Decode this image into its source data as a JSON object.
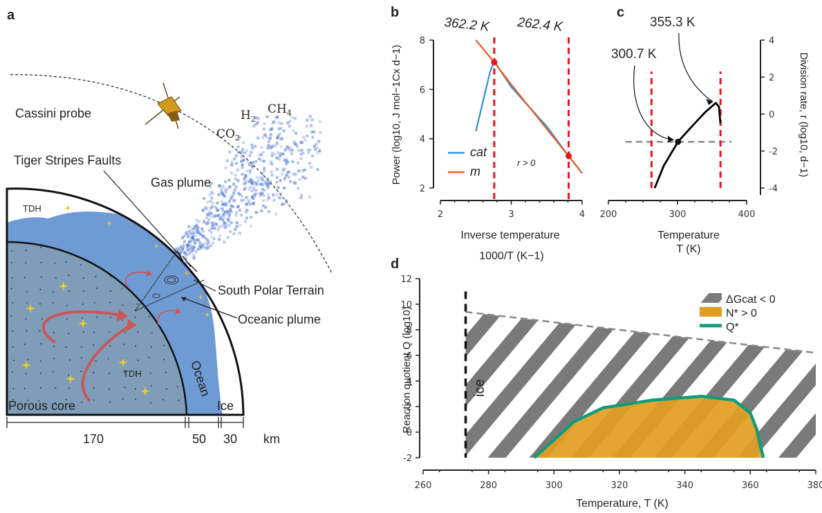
{
  "panels": {
    "a": {
      "letter": "a",
      "cassini": "Cassini probe",
      "h2_main": "H",
      "h2_sub": "2",
      "ch4_main": "CH",
      "ch4_sub": "4",
      "co2_main": "CO",
      "co2_sub": "2",
      "tiger": "Tiger Stripes Faults",
      "gas_plume": "Gas plume",
      "tdh": "TDH",
      "south_polar": "South Polar Terrain",
      "oceanic_plume": "Oceanic plume",
      "porous_core": "Porous core",
      "ocean": "Ocean",
      "ice": "Ice",
      "scale": [
        "170",
        "50",
        "30"
      ],
      "unit": "km"
    },
    "b": {
      "letter": "b",
      "temp_left": "362.2 K",
      "temp_right": "262.4 K",
      "r_label": "r > 0",
      "ylabel": "Power (log10, J mol−1Cx d−1)",
      "xlabel_line1": "Inverse temperature",
      "xlabel_line2": "1000/T (K−1)"
    },
    "c": {
      "letter": "c",
      "ann1": "355.3 K",
      "ann2": "300.7 K",
      "xlabel_line1": "Temperature",
      "xlabel_line2": "T (K)",
      "ylabel": "Division rate, r (log10, d−1)"
    },
    "d": {
      "letter": "d",
      "ice": "ice",
      "ylabel": "Reaction quotient Q (log10)",
      "xlabel": "Temperature, T (K)",
      "legend": [
        "ΔGcat < 0",
        "N* > 0",
        "Q*"
      ]
    }
  },
  "chart_data": [
    {
      "panel": "b",
      "type": "line",
      "xlabel": "Inverse temperature 1000/T (K−1)",
      "ylabel": "Power (log10, J mol−1Cx d−1)",
      "xlim": [
        2,
        4
      ],
      "ylim": [
        2,
        8
      ],
      "xticks": [
        "2",
        "3",
        "4"
      ],
      "yticks": [
        "2",
        "4",
        "6",
        "8"
      ],
      "series": [
        {
          "name": "cat",
          "color": "#2b8fe0",
          "x": [
            2.5,
            2.6,
            2.7,
            2.76,
            3.0,
            3.5,
            3.81,
            4.0
          ],
          "y": [
            4.3,
            5.5,
            6.7,
            7.15,
            6.1,
            4.5,
            3.3,
            2.6
          ]
        },
        {
          "name": "m",
          "color": "#ee5a1f",
          "x": [
            2.5,
            2.76,
            3.0,
            3.5,
            3.81,
            4.0
          ],
          "y": [
            8.0,
            7.1,
            6.2,
            4.4,
            3.3,
            2.6
          ]
        }
      ],
      "vlines": [
        2.76,
        3.81
      ],
      "points": [
        {
          "x": 2.76,
          "y": 7.1
        },
        {
          "x": 3.81,
          "y": 3.3
        }
      ],
      "legend_position": "bottom-left"
    },
    {
      "panel": "c",
      "type": "line",
      "xlabel": "Temperature T (K)",
      "ylabel": "Division rate, r (log10, d−1)",
      "xlim": [
        200,
        400
      ],
      "ylim": [
        -4,
        4
      ],
      "xticks": [
        "200",
        "300",
        "400"
      ],
      "yticks": [
        "-4",
        "-2",
        "0",
        "2",
        "4"
      ],
      "series": [
        {
          "name": "",
          "color": "#000000",
          "x": [
            267,
            280,
            300.7,
            320,
            340,
            355.3,
            360,
            362
          ],
          "y": [
            -4.0,
            -2.8,
            -1.5,
            -0.7,
            0.1,
            0.6,
            0.4,
            -0.5
          ]
        }
      ],
      "hline": -1.5,
      "vlines": [
        262.4,
        362.2
      ],
      "points": [
        {
          "x": 300.7,
          "y": -1.5
        }
      ]
    },
    {
      "panel": "d",
      "type": "area",
      "xlabel": "Temperature, T (K)",
      "ylabel": "Reaction quotient Q (log10)",
      "xlim": [
        260,
        380
      ],
      "ylim": [
        -2,
        12
      ],
      "xticks": [
        "260",
        "280",
        "300",
        "320",
        "340",
        "360",
        "380"
      ],
      "yticks": [
        "-2",
        "0",
        "2",
        "4",
        "6",
        "8",
        "10",
        "12"
      ],
      "ice_line": 273,
      "boundary": {
        "x": [
          273,
          380
        ],
        "y": [
          9.4,
          6.2
        ]
      },
      "qstar": {
        "x": [
          294,
          300,
          306,
          315,
          330,
          345,
          355,
          360,
          362,
          363,
          364
        ],
        "y": [
          -2,
          -0.6,
          0.8,
          1.9,
          2.5,
          2.8,
          2.5,
          1.5,
          0.2,
          -1.0,
          -2
        ]
      }
    }
  ]
}
